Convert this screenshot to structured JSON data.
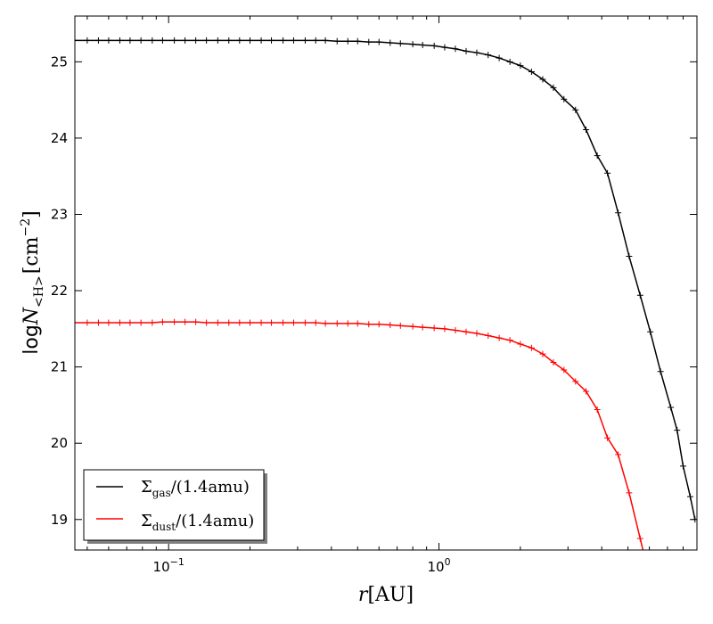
{
  "chart_data": {
    "type": "line",
    "xscale": "log",
    "xlim": [
      0.045,
      9.0
    ],
    "ylim": [
      18.6,
      25.6
    ],
    "xlabel": {
      "var": "r",
      "unit": "[AU]"
    },
    "ylabel": {
      "prefix": "log",
      "var": "N",
      "sub": "<H>",
      "unit": "[cm",
      "unit_exp": "−2",
      "unit_close": "]"
    },
    "x_ticks": [
      {
        "value": 0.1,
        "base": "10",
        "exp": "−1"
      },
      {
        "value": 1.0,
        "base": "10",
        "exp": "0"
      }
    ],
    "y_ticks": [
      {
        "value": 19,
        "label": "19"
      },
      {
        "value": 20,
        "label": "20"
      },
      {
        "value": 21,
        "label": "21"
      },
      {
        "value": 22,
        "label": "22"
      },
      {
        "value": 23,
        "label": "23"
      },
      {
        "value": 24,
        "label": "24"
      },
      {
        "value": 25,
        "label": "25"
      }
    ],
    "grid": false,
    "legend_position": "lower-left",
    "series": [
      {
        "name": "Σgas/(1.4amu)",
        "legend": {
          "sym": "Σ",
          "sub": "gas",
          "rest": "/(1.4amu)"
        },
        "color": "#000000",
        "marker": "+",
        "x": [
          0.045,
          0.05,
          0.055,
          0.06,
          0.066,
          0.072,
          0.079,
          0.087,
          0.095,
          0.105,
          0.115,
          0.126,
          0.138,
          0.152,
          0.167,
          0.183,
          0.2,
          0.22,
          0.24,
          0.265,
          0.29,
          0.32,
          0.35,
          0.38,
          0.42,
          0.46,
          0.5,
          0.55,
          0.6,
          0.66,
          0.72,
          0.8,
          0.87,
          0.96,
          1.05,
          1.15,
          1.26,
          1.38,
          1.52,
          1.67,
          1.83,
          2.0,
          2.2,
          2.42,
          2.65,
          2.9,
          3.2,
          3.5,
          3.85,
          4.2,
          4.6,
          5.05,
          5.55,
          6.05,
          6.6,
          7.2,
          7.6,
          8.0,
          8.5,
          8.85
        ],
        "y": [
          25.28,
          25.28,
          25.28,
          25.28,
          25.28,
          25.28,
          25.28,
          25.28,
          25.28,
          25.28,
          25.28,
          25.28,
          25.28,
          25.28,
          25.28,
          25.28,
          25.28,
          25.28,
          25.28,
          25.28,
          25.28,
          25.28,
          25.28,
          25.28,
          25.27,
          25.27,
          25.27,
          25.26,
          25.26,
          25.25,
          25.24,
          25.23,
          25.22,
          25.21,
          25.19,
          25.17,
          25.14,
          25.12,
          25.09,
          25.05,
          25.0,
          24.95,
          24.87,
          24.77,
          24.66,
          24.51,
          24.37,
          24.11,
          23.77,
          23.54,
          23.02,
          22.45,
          21.94,
          21.46,
          20.94,
          20.47,
          20.17,
          19.7,
          19.3,
          19.0
        ]
      },
      {
        "name": "Σdust/(1.4amu)",
        "legend": {
          "sym": "Σ",
          "sub": "dust",
          "rest": "/(1.4amu)"
        },
        "color": "#ff0000",
        "marker": "+",
        "x": [
          0.045,
          0.05,
          0.055,
          0.06,
          0.066,
          0.072,
          0.079,
          0.087,
          0.095,
          0.105,
          0.115,
          0.126,
          0.138,
          0.152,
          0.167,
          0.183,
          0.2,
          0.22,
          0.24,
          0.265,
          0.29,
          0.32,
          0.35,
          0.38,
          0.42,
          0.46,
          0.5,
          0.55,
          0.6,
          0.66,
          0.72,
          0.8,
          0.87,
          0.96,
          1.05,
          1.15,
          1.26,
          1.38,
          1.52,
          1.67,
          1.83,
          2.0,
          2.2,
          2.42,
          2.65,
          2.9,
          3.2,
          3.5,
          3.85,
          4.2,
          4.6,
          5.05,
          5.55,
          6.05
        ],
        "y": [
          21.58,
          21.58,
          21.58,
          21.58,
          21.58,
          21.58,
          21.58,
          21.58,
          21.59,
          21.59,
          21.59,
          21.59,
          21.58,
          21.58,
          21.58,
          21.58,
          21.58,
          21.58,
          21.58,
          21.58,
          21.58,
          21.58,
          21.58,
          21.57,
          21.57,
          21.57,
          21.57,
          21.56,
          21.56,
          21.55,
          21.54,
          21.53,
          21.52,
          21.51,
          21.5,
          21.48,
          21.46,
          21.44,
          21.41,
          21.38,
          21.35,
          21.3,
          21.25,
          21.17,
          21.06,
          20.96,
          20.81,
          20.68,
          20.44,
          20.07,
          19.85,
          19.35,
          18.75,
          18.2
        ]
      }
    ]
  }
}
